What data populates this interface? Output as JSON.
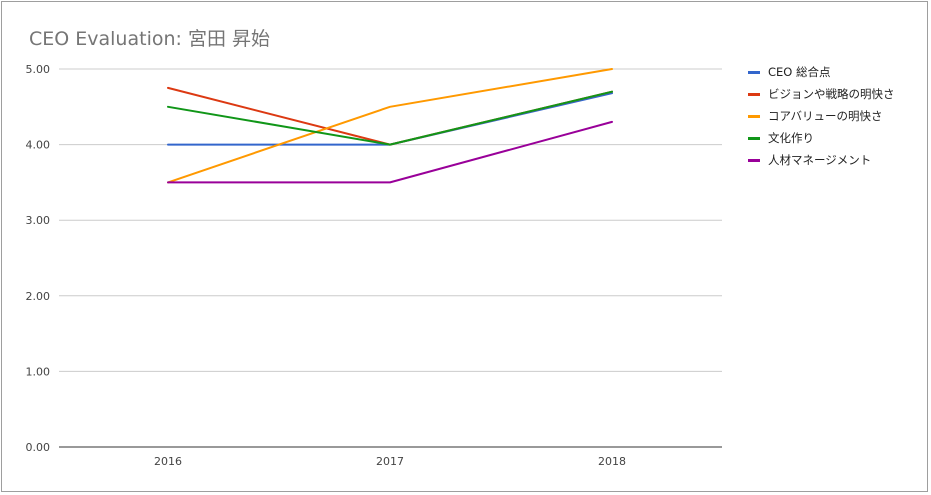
{
  "chart_data": {
    "type": "line",
    "title": "CEO Evaluation: 宮田 昇始",
    "xlabel": "",
    "ylabel": "",
    "categories": [
      "2016",
      "2017",
      "2018"
    ],
    "ylim": [
      0,
      5
    ],
    "yticks": [
      "0.00",
      "1.00",
      "2.00",
      "3.00",
      "4.00",
      "5.00"
    ],
    "grid": true,
    "legend_position": "right",
    "series": [
      {
        "name": "CEO 総合点",
        "color": "#3366cc",
        "values": [
          4.0,
          4.0,
          4.68
        ]
      },
      {
        "name": "ビジョンや戦略の明快さ",
        "color": "#dc3912",
        "values": [
          4.75,
          4.0,
          4.7
        ]
      },
      {
        "name": "コアバリューの明快さ",
        "color": "#ff9900",
        "values": [
          3.5,
          4.5,
          5.0
        ]
      },
      {
        "name": "文化作り",
        "color": "#109618",
        "values": [
          4.5,
          4.0,
          4.7
        ]
      },
      {
        "name": "人材マネージメント",
        "color": "#990099",
        "values": [
          3.5,
          3.5,
          4.3
        ]
      }
    ]
  }
}
